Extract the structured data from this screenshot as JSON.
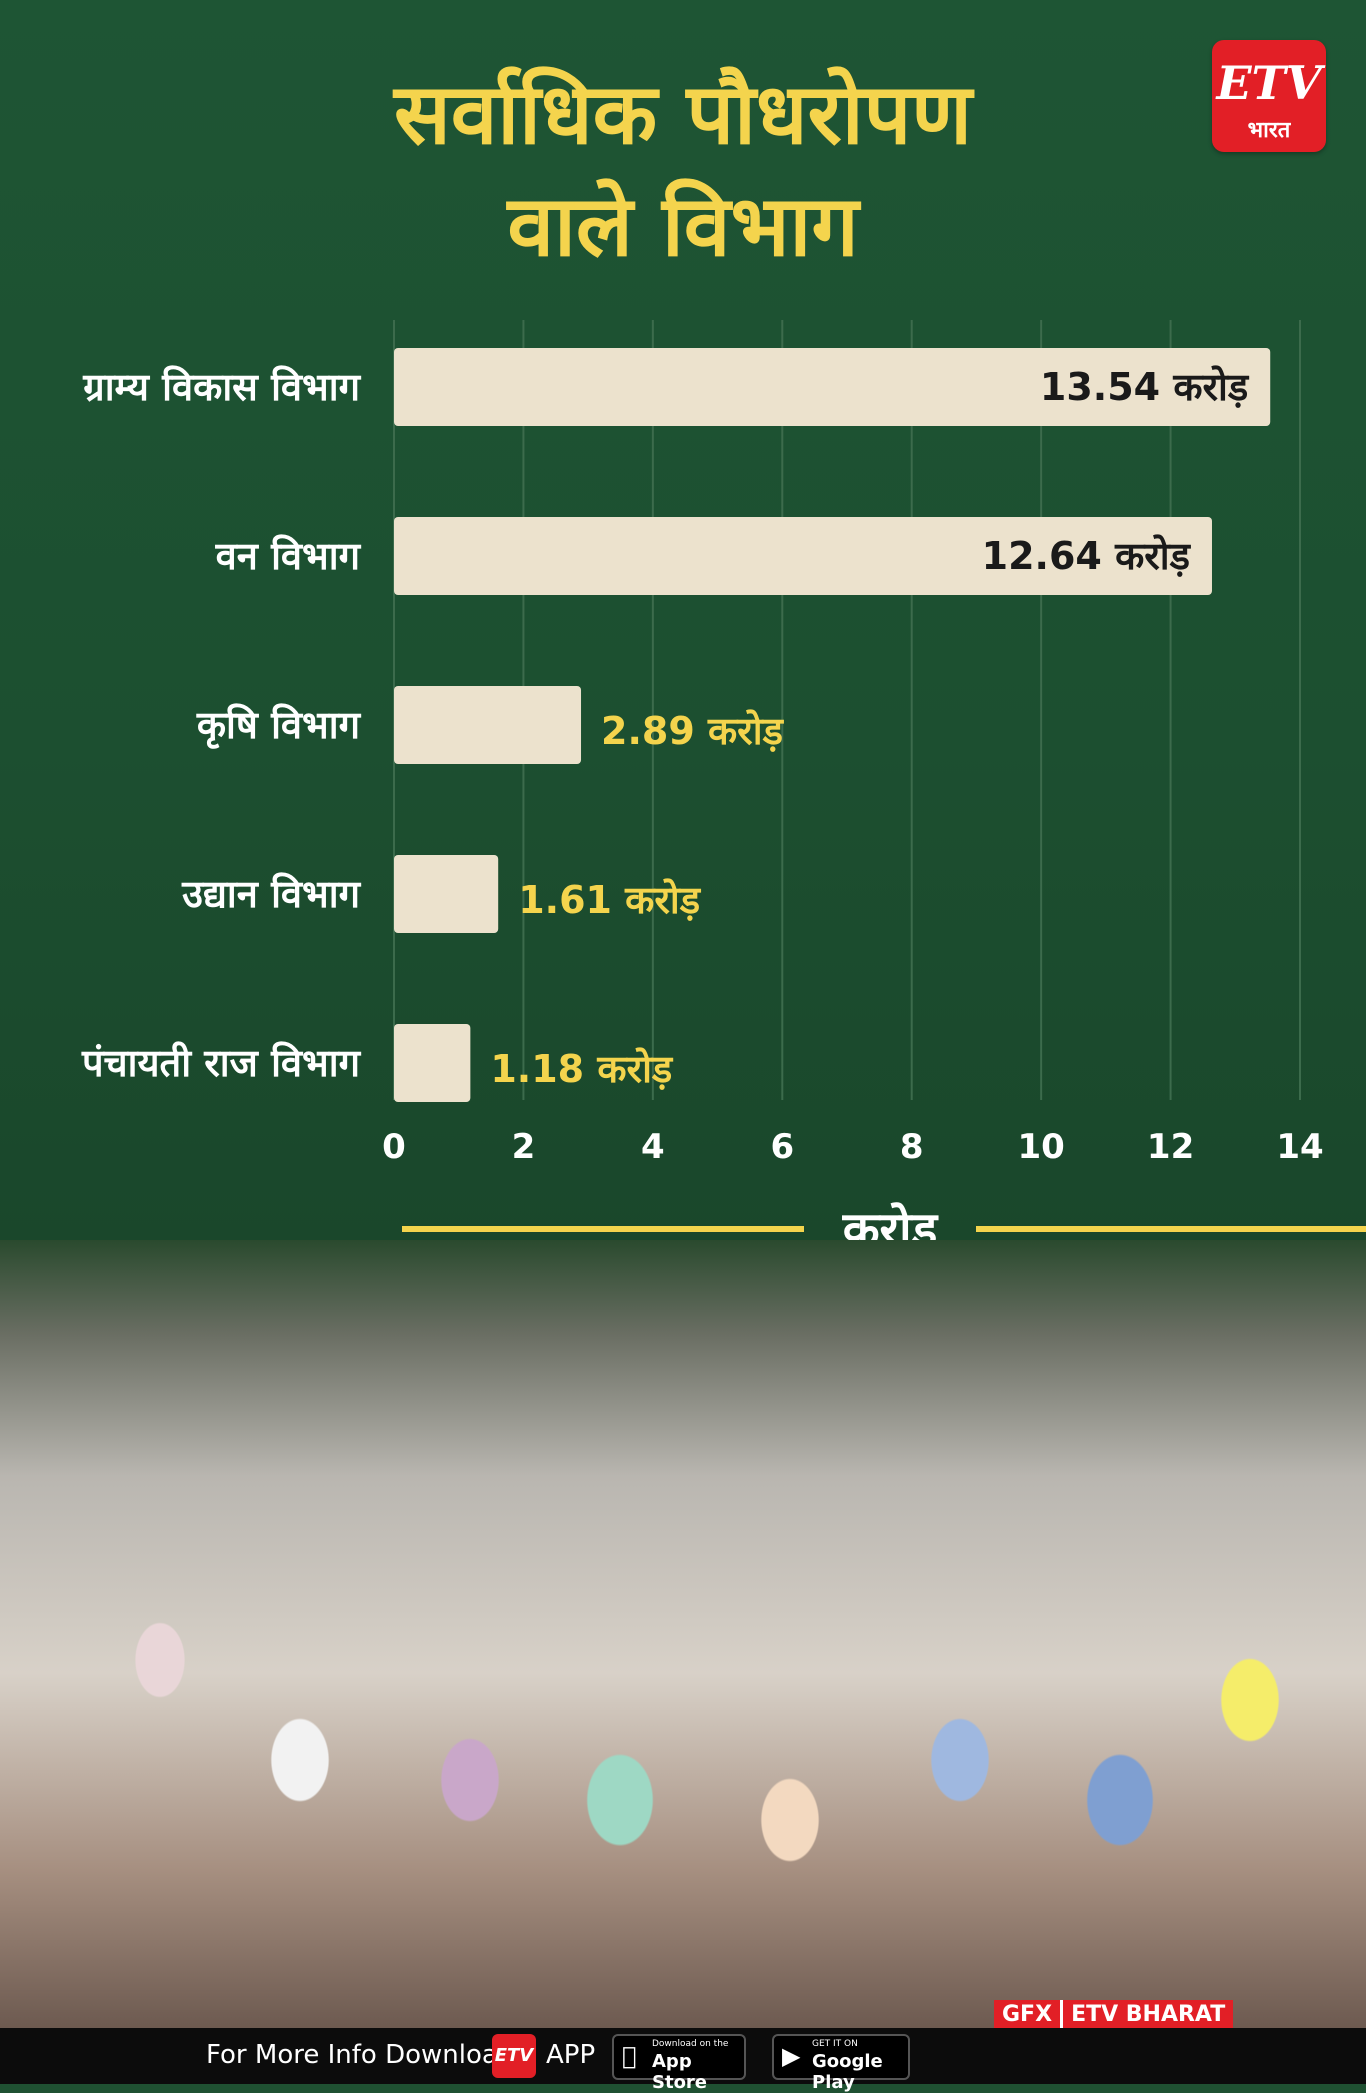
{
  "header": {
    "title_line1": "सर्वाधिक पौधरोपण",
    "title_line2": "वाले विभाग",
    "logo_text": "ETV",
    "logo_sub": "भारत"
  },
  "chart_data": {
    "type": "bar",
    "orientation": "horizontal",
    "categories": [
      "ग्राम्य विकास विभाग",
      "वन विभाग",
      "कृषि विभाग",
      "उद्यान विभाग",
      "पंचायती राज विभाग"
    ],
    "values": [
      13.54,
      12.64,
      2.89,
      1.61,
      1.18
    ],
    "value_labels": [
      "13.54 करोड़",
      "12.64 करोड़",
      "2.89 करोड़",
      "1.61 करोड़",
      "1.18 करोड़"
    ],
    "xlabel": "करोड़",
    "xlim": [
      0,
      14
    ],
    "xticks": [
      "0",
      "2",
      "4",
      "6",
      "8",
      "10",
      "12",
      "14"
    ],
    "grid": true,
    "colors": {
      "bar": "#ece2cd",
      "label_outside": "#f4d44d",
      "label_inside": "#1a1a1a",
      "grid": "#3c6b4c"
    }
  },
  "credits": {
    "gfx": "GFX",
    "brand": "ETV BHARAT"
  },
  "footer": {
    "info_text": "For More Info Download",
    "app_text": "APP",
    "app_store_small": "Download on the",
    "app_store_big": "App Store",
    "google_play_small": "GET IT ON",
    "google_play_big": "Google Play"
  }
}
